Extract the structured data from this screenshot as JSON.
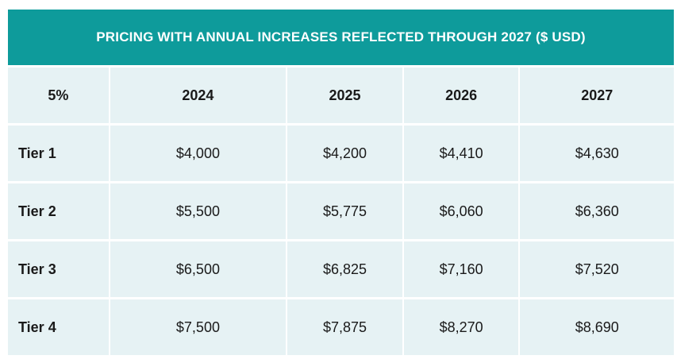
{
  "table": {
    "title": "PRICING WITH ANNUAL INCREASES REFLECTED THROUGH 2027 ($ USD)",
    "header": [
      "5%",
      "2024",
      "2025",
      "2026",
      "2027"
    ],
    "rows": [
      {
        "label": "Tier 1",
        "values": [
          "$4,000",
          "$4,200",
          "$4,410",
          "$4,630"
        ]
      },
      {
        "label": "Tier 2",
        "values": [
          "$5,500",
          "$5,775",
          "$6,060",
          "$6,360"
        ]
      },
      {
        "label": "Tier 3",
        "values": [
          "$6,500",
          "$6,825",
          "$7,160",
          "$7,520"
        ]
      },
      {
        "label": "Tier 4",
        "values": [
          "$7,500",
          "$7,875",
          "$8,270",
          "$8,690"
        ]
      }
    ]
  },
  "colors": {
    "title_bar": "#0e9b9b",
    "cell_background": "#e6f2f4",
    "title_text": "#ffffff",
    "cell_text": "#1a1a1a"
  }
}
